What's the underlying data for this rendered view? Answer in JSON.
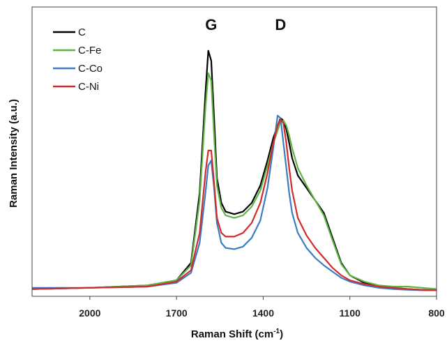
{
  "chart_data": {
    "type": "line",
    "xlabel": "Raman Shift (cm",
    "xlabel_sup": "-1",
    "xlabel_end": ")",
    "ylabel": "Raman Intensity  (a.u.)",
    "xlim": [
      2200,
      800
    ],
    "x_reversed": true,
    "ylim": [
      0,
      1
    ],
    "y_ticks_visible": false,
    "grid": false,
    "legend_position": "top-left",
    "x_ticks": [
      "2000",
      "1700",
      "1400",
      "1100",
      "800"
    ],
    "x_tick_values": [
      2000,
      1700,
      1400,
      1100,
      800
    ],
    "annotations": [
      {
        "text": "G",
        "x": 1580
      },
      {
        "text": "D",
        "x": 1340
      }
    ],
    "series": [
      {
        "name": "C",
        "color": "#000000",
        "x": [
          2200,
          2000,
          1800,
          1700,
          1650,
          1620,
          1600,
          1590,
          1580,
          1570,
          1560,
          1545,
          1530,
          1500,
          1470,
          1440,
          1410,
          1385,
          1365,
          1350,
          1340,
          1330,
          1320,
          1310,
          1300,
          1280,
          1250,
          1220,
          1190,
          1160,
          1130,
          1100,
          1050,
          1000,
          950,
          900,
          850,
          800
        ],
        "y": [
          0.015,
          0.02,
          0.03,
          0.05,
          0.12,
          0.4,
          0.8,
          0.97,
          0.93,
          0.7,
          0.46,
          0.36,
          0.325,
          0.315,
          0.325,
          0.36,
          0.43,
          0.53,
          0.62,
          0.67,
          0.7,
          0.69,
          0.655,
          0.6,
          0.54,
          0.47,
          0.42,
          0.37,
          0.32,
          0.22,
          0.12,
          0.07,
          0.04,
          0.025,
          0.02,
          0.015,
          0.012,
          0.01
        ]
      },
      {
        "name": "C-Fe",
        "color": "#5fb543",
        "x": [
          2200,
          2000,
          1800,
          1700,
          1650,
          1620,
          1600,
          1590,
          1580,
          1570,
          1560,
          1545,
          1530,
          1500,
          1470,
          1440,
          1410,
          1385,
          1365,
          1350,
          1340,
          1330,
          1320,
          1310,
          1300,
          1280,
          1250,
          1220,
          1190,
          1160,
          1130,
          1100,
          1050,
          1000,
          950,
          900,
          850,
          800
        ],
        "y": [
          0.015,
          0.02,
          0.03,
          0.05,
          0.11,
          0.37,
          0.74,
          0.88,
          0.85,
          0.63,
          0.43,
          0.34,
          0.31,
          0.3,
          0.31,
          0.345,
          0.41,
          0.51,
          0.6,
          0.65,
          0.685,
          0.69,
          0.67,
          0.63,
          0.58,
          0.5,
          0.43,
          0.37,
          0.31,
          0.21,
          0.115,
          0.07,
          0.045,
          0.03,
          0.025,
          0.025,
          0.02,
          0.015
        ]
      },
      {
        "name": "C-Co",
        "color": "#3b7dc4",
        "x": [
          2200,
          2000,
          1800,
          1700,
          1650,
          1620,
          1600,
          1590,
          1580,
          1570,
          1560,
          1545,
          1530,
          1500,
          1470,
          1440,
          1410,
          1385,
          1365,
          1350,
          1340,
          1330,
          1320,
          1310,
          1300,
          1280,
          1250,
          1220,
          1190,
          1160,
          1130,
          1100,
          1050,
          1000,
          950,
          900,
          850,
          800
        ],
        "y": [
          0.02,
          0.02,
          0.025,
          0.04,
          0.08,
          0.2,
          0.4,
          0.51,
          0.53,
          0.42,
          0.28,
          0.2,
          0.18,
          0.175,
          0.185,
          0.22,
          0.29,
          0.42,
          0.58,
          0.71,
          0.7,
          0.6,
          0.5,
          0.4,
          0.32,
          0.24,
          0.18,
          0.14,
          0.11,
          0.085,
          0.06,
          0.045,
          0.03,
          0.02,
          0.015,
          0.012,
          0.01,
          0.01
        ]
      },
      {
        "name": "C-Ni",
        "color": "#d22b2b",
        "x": [
          2200,
          2000,
          1800,
          1700,
          1650,
          1620,
          1600,
          1590,
          1580,
          1570,
          1560,
          1545,
          1530,
          1500,
          1470,
          1440,
          1410,
          1385,
          1365,
          1350,
          1340,
          1330,
          1320,
          1310,
          1300,
          1280,
          1250,
          1220,
          1190,
          1160,
          1130,
          1100,
          1050,
          1000,
          950,
          900,
          850,
          800
        ],
        "y": [
          0.015,
          0.02,
          0.025,
          0.045,
          0.09,
          0.24,
          0.48,
          0.57,
          0.57,
          0.44,
          0.3,
          0.24,
          0.225,
          0.225,
          0.24,
          0.28,
          0.36,
          0.48,
          0.6,
          0.67,
          0.695,
          0.68,
          0.6,
          0.5,
          0.41,
          0.3,
          0.23,
          0.18,
          0.14,
          0.1,
          0.07,
          0.05,
          0.035,
          0.025,
          0.02,
          0.015,
          0.012,
          0.01
        ]
      }
    ]
  }
}
